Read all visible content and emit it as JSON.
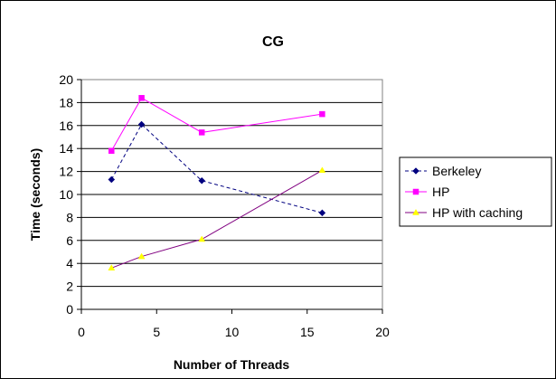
{
  "chart_data": {
    "type": "line",
    "title": "CG",
    "xlabel": "Number of Threads",
    "ylabel": "Time (seconds)",
    "xlim": [
      0,
      20
    ],
    "ylim": [
      0,
      20
    ],
    "x_ticks": [
      "0",
      "5",
      "10",
      "15",
      "20"
    ],
    "y_ticks": [
      "0",
      "2",
      "4",
      "6",
      "8",
      "10",
      "12",
      "14",
      "16",
      "18",
      "20"
    ],
    "grid": "horizontal",
    "legend_position": "right",
    "series": [
      {
        "name": "Berkeley",
        "color": "#000080",
        "line_style": "dashed",
        "marker": "diamond",
        "points": [
          [
            2,
            11.3
          ],
          [
            4,
            16.1
          ],
          [
            8,
            11.2
          ],
          [
            16,
            8.4
          ]
        ]
      },
      {
        "name": "HP",
        "color": "#ff00ff",
        "line_style": "solid",
        "marker": "square",
        "points": [
          [
            2,
            13.8
          ],
          [
            4,
            18.4
          ],
          [
            8,
            15.4
          ],
          [
            16,
            17.0
          ]
        ]
      },
      {
        "name": "HP with caching",
        "color": "#800080",
        "marker_color": "#ffff00",
        "line_style": "solid",
        "marker": "triangle",
        "points": [
          [
            2,
            3.6
          ],
          [
            4,
            4.6
          ],
          [
            8,
            6.1
          ],
          [
            16,
            12.1
          ]
        ]
      }
    ]
  }
}
